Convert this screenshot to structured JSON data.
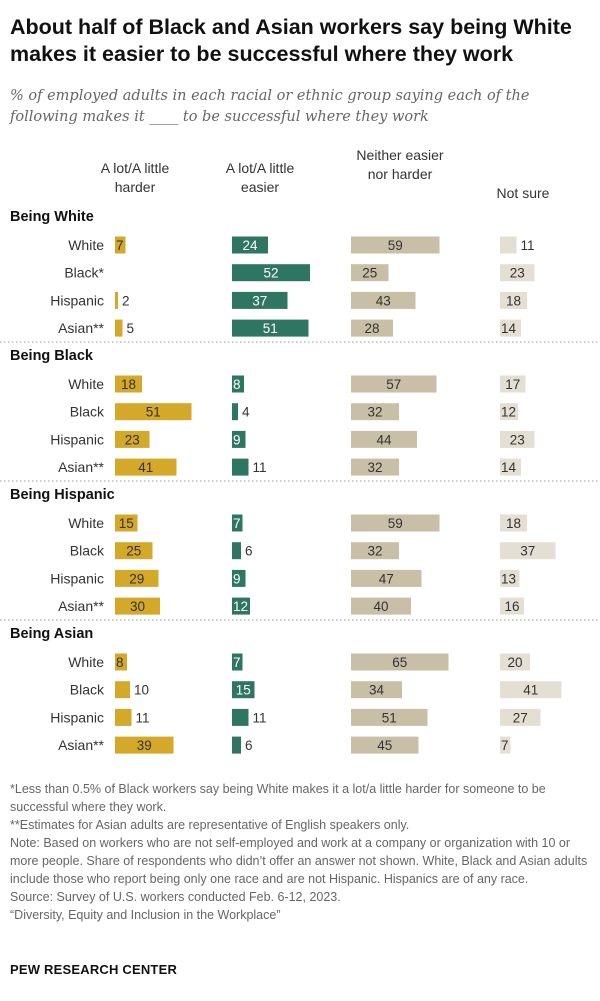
{
  "title": "About half of Black and Asian workers say being White makes it easier to be successful where they work",
  "subtitle": "% of employed adults in each racial or ethnic group saying each of the following makes it ____ to be successful where they work",
  "chart_data": {
    "type": "bar",
    "columns": [
      "A lot/A little harder",
      "A lot/A little easier",
      "Neither easier nor harder",
      "Not sure"
    ],
    "column_headers": {
      "harder": "A lot/A little harder",
      "easier": "A lot/A little easier",
      "neither": "Neither easier nor harder",
      "not_sure": "Not sure"
    },
    "colors": {
      "harder": "#d4a829",
      "easier": "#2e7562",
      "neither": "#c9bfa7",
      "not_sure": "#e4dfd2"
    },
    "sections": [
      {
        "title": "Being White",
        "rows": [
          {
            "label": "White",
            "values": [
              7,
              24,
              59,
              11
            ]
          },
          {
            "label": "Black*",
            "values": [
              0,
              52,
              25,
              23
            ]
          },
          {
            "label": "Hispanic",
            "values": [
              2,
              37,
              43,
              18
            ]
          },
          {
            "label": "Asian**",
            "values": [
              5,
              51,
              28,
              14
            ]
          }
        ]
      },
      {
        "title": "Being Black",
        "rows": [
          {
            "label": "White",
            "values": [
              18,
              8,
              57,
              17
            ]
          },
          {
            "label": "Black",
            "values": [
              51,
              4,
              32,
              12
            ]
          },
          {
            "label": "Hispanic",
            "values": [
              23,
              9,
              44,
              23
            ]
          },
          {
            "label": "Asian**",
            "values": [
              41,
              11,
              32,
              14
            ]
          }
        ]
      },
      {
        "title": "Being Hispanic",
        "rows": [
          {
            "label": "White",
            "values": [
              15,
              7,
              59,
              18
            ]
          },
          {
            "label": "Black",
            "values": [
              25,
              6,
              32,
              37
            ]
          },
          {
            "label": "Hispanic",
            "values": [
              29,
              9,
              47,
              13
            ]
          },
          {
            "label": "Asian**",
            "values": [
              30,
              12,
              40,
              16
            ]
          }
        ]
      },
      {
        "title": "Being Asian",
        "rows": [
          {
            "label": "White",
            "values": [
              8,
              7,
              65,
              20
            ]
          },
          {
            "label": "Black",
            "values": [
              10,
              15,
              34,
              41
            ]
          },
          {
            "label": "Hispanic",
            "values": [
              11,
              11,
              51,
              27
            ]
          },
          {
            "label": "Asian**",
            "values": [
              39,
              6,
              45,
              7
            ]
          }
        ]
      }
    ]
  },
  "notes": {
    "note1": "*Less than 0.5% of Black workers say being White makes it a lot/a little harder for someone to be successful where they work.",
    "note2": "**Estimates for Asian adults are representative of English speakers only.",
    "note3": "Note: Based on workers who are not self-employed and work at a company or organization with 10 or more people. Share of respondents who didn’t offer an answer not shown. White, Black and Asian adults include those who report being only one race and are not Hispanic. Hispanics are of any race.",
    "source": "Source: Survey of U.S. workers conducted Feb. 6-12, 2023.",
    "report": "“Diversity, Equity and Inclusion in the Workplace”"
  },
  "brand": "PEW RESEARCH CENTER"
}
